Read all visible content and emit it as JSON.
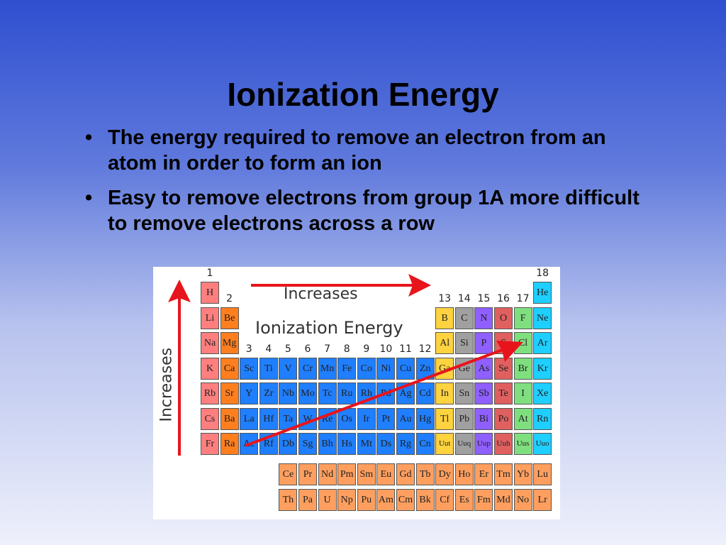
{
  "slide": {
    "title": "Ionization Energy",
    "bullet_char": "•",
    "bullets": [
      "The energy required to remove an electron from an atom in order to form an ion",
      "Easy to remove electrons from group 1A more difficult to remove electrons across a row"
    ]
  },
  "figure": {
    "label_increases_horizontal": "Increases",
    "label_increases_vertical": "Increases",
    "label_ionization_energy": "Ionization Energy",
    "group_labels": [
      "1",
      "2",
      "3",
      "4",
      "5",
      "6",
      "7",
      "8",
      "9",
      "10",
      "11",
      "12",
      "13",
      "14",
      "15",
      "16",
      "17",
      "18"
    ],
    "colors": {
      "alkali": "#ff7f7f",
      "alkaline": "#ff7f1f",
      "transition": "#1f7fff",
      "lanthanide": "#ff9f5f",
      "metalloid": "#a0a0a0",
      "post": "#ffd23f",
      "nonmetal": "#8f5fff",
      "chalcogen": "#e06060",
      "halogen": "#7fdf7f",
      "noble": "#1fcfff",
      "arrow": "#e8141c"
    },
    "periods": [
      [
        [
          "H",
          "alkali"
        ],
        null,
        null,
        null,
        null,
        null,
        null,
        null,
        null,
        null,
        null,
        null,
        null,
        null,
        null,
        null,
        null,
        [
          "He",
          "noble"
        ]
      ],
      [
        [
          "Li",
          "alkali"
        ],
        [
          "Be",
          "alkaline"
        ],
        null,
        null,
        null,
        null,
        null,
        null,
        null,
        null,
        null,
        null,
        [
          "B",
          "post"
        ],
        [
          "C",
          "metalloid"
        ],
        [
          "N",
          "nonmetal"
        ],
        [
          "O",
          "chalcogen"
        ],
        [
          "F",
          "halogen"
        ],
        [
          "Ne",
          "noble"
        ]
      ],
      [
        [
          "Na",
          "alkali"
        ],
        [
          "Mg",
          "alkaline"
        ],
        null,
        null,
        null,
        null,
        null,
        null,
        null,
        null,
        null,
        null,
        [
          "Al",
          "post"
        ],
        [
          "Si",
          "metalloid"
        ],
        [
          "P",
          "nonmetal"
        ],
        [
          "S",
          "chalcogen"
        ],
        [
          "Cl",
          "halogen"
        ],
        [
          "Ar",
          "noble"
        ]
      ],
      [
        [
          "K",
          "alkali"
        ],
        [
          "Ca",
          "alkaline"
        ],
        [
          "Sc",
          "transition"
        ],
        [
          "Ti",
          "transition"
        ],
        [
          "V",
          "transition"
        ],
        [
          "Cr",
          "transition"
        ],
        [
          "Mn",
          "transition"
        ],
        [
          "Fe",
          "transition"
        ],
        [
          "Co",
          "transition"
        ],
        [
          "Ni",
          "transition"
        ],
        [
          "Cu",
          "transition"
        ],
        [
          "Zn",
          "transition"
        ],
        [
          "Ga",
          "post"
        ],
        [
          "Ge",
          "metalloid"
        ],
        [
          "As",
          "nonmetal"
        ],
        [
          "Se",
          "chalcogen"
        ],
        [
          "Br",
          "halogen"
        ],
        [
          "Kr",
          "noble"
        ]
      ],
      [
        [
          "Rb",
          "alkali"
        ],
        [
          "Sr",
          "alkaline"
        ],
        [
          "Y",
          "transition"
        ],
        [
          "Zr",
          "transition"
        ],
        [
          "Nb",
          "transition"
        ],
        [
          "Mo",
          "transition"
        ],
        [
          "Tc",
          "transition"
        ],
        [
          "Ru",
          "transition"
        ],
        [
          "Rh",
          "transition"
        ],
        [
          "Pd",
          "transition"
        ],
        [
          "Ag",
          "transition"
        ],
        [
          "Cd",
          "transition"
        ],
        [
          "In",
          "post"
        ],
        [
          "Sn",
          "metalloid"
        ],
        [
          "Sb",
          "nonmetal"
        ],
        [
          "Te",
          "chalcogen"
        ],
        [
          "I",
          "halogen"
        ],
        [
          "Xe",
          "noble"
        ]
      ],
      [
        [
          "Cs",
          "alkali"
        ],
        [
          "Ba",
          "alkaline"
        ],
        [
          "La",
          "transition"
        ],
        [
          "Hf",
          "transition"
        ],
        [
          "Ta",
          "transition"
        ],
        [
          "W",
          "transition"
        ],
        [
          "Re",
          "transition"
        ],
        [
          "Os",
          "transition"
        ],
        [
          "Ir",
          "transition"
        ],
        [
          "Pt",
          "transition"
        ],
        [
          "Au",
          "transition"
        ],
        [
          "Hg",
          "transition"
        ],
        [
          "Tl",
          "post"
        ],
        [
          "Pb",
          "metalloid"
        ],
        [
          "Bi",
          "nonmetal"
        ],
        [
          "Po",
          "chalcogen"
        ],
        [
          "At",
          "halogen"
        ],
        [
          "Rn",
          "noble"
        ]
      ],
      [
        [
          "Fr",
          "alkali"
        ],
        [
          "Ra",
          "alkaline"
        ],
        [
          "Ac",
          "transition"
        ],
        [
          "Rf",
          "transition"
        ],
        [
          "Db",
          "transition"
        ],
        [
          "Sg",
          "transition"
        ],
        [
          "Bh",
          "transition"
        ],
        [
          "Hs",
          "transition"
        ],
        [
          "Mt",
          "transition"
        ],
        [
          "Ds",
          "transition"
        ],
        [
          "Rg",
          "transition"
        ],
        [
          "Cn",
          "transition"
        ],
        [
          "Uut",
          "post"
        ],
        [
          "Uuq",
          "metalloid"
        ],
        [
          "Uup",
          "nonmetal"
        ],
        [
          "Uuh",
          "chalcogen"
        ],
        [
          "Uus",
          "halogen"
        ],
        [
          "Uuo",
          "noble"
        ]
      ]
    ],
    "f_block": [
      [
        "Ce",
        "Pr",
        "Nd",
        "Pm",
        "Sm",
        "Eu",
        "Gd",
        "Tb",
        "Dy",
        "Ho",
        "Er",
        "Tm",
        "Yb",
        "Lu"
      ],
      [
        "Th",
        "Pa",
        "U",
        "Np",
        "Pu",
        "Am",
        "Cm",
        "Bk",
        "Cf",
        "Es",
        "Fm",
        "Md",
        "No",
        "Lr"
      ]
    ]
  }
}
